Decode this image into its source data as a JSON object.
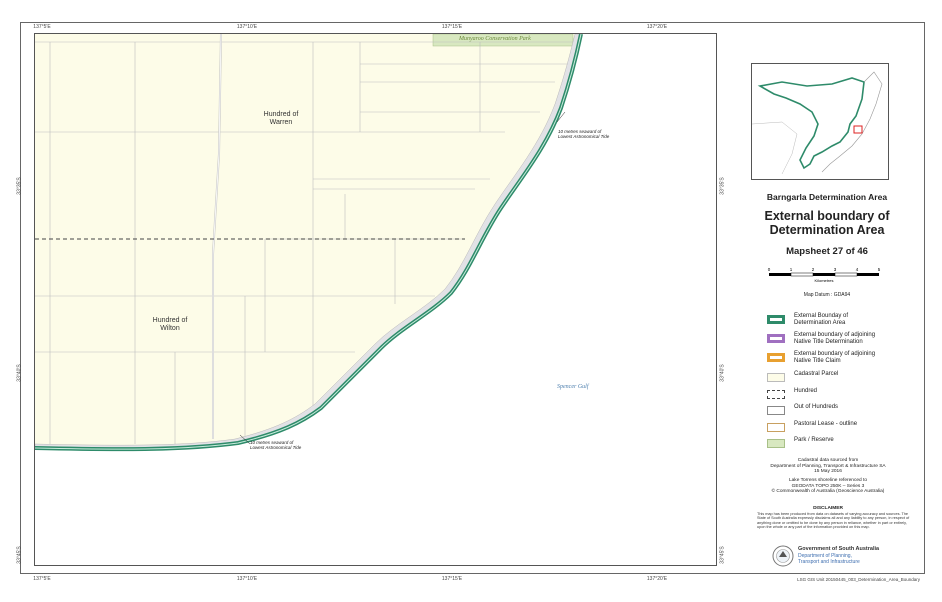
{
  "ticks": {
    "top": [
      "137°5'E",
      "137°10'E",
      "137°15'E",
      "137°20'E"
    ],
    "bottom": [
      "137°5'E",
      "137°10'E",
      "137°15'E",
      "137°20'E"
    ],
    "left": [
      "33°35'S",
      "33°40'S",
      "33°45'S"
    ],
    "right": [
      "33°35'S",
      "33°40'S",
      "33°45'S"
    ]
  },
  "map": {
    "park_label": "Munyaroo Conservation Park",
    "hundred_warren": "Hundred of\nWarren",
    "hundred_wilton": "Hundred of\nWilton",
    "sea_label": "Spencer Gulf",
    "annotation_top": "10 metres seaward of\nLowest Astronomical Tide",
    "annotation_bottom": "10 metres seaward of\nLowest Astronomical Tide"
  },
  "panel": {
    "area_title": "Barngarla Determination Area",
    "main_title": "External boundary of\nDetermination Area",
    "mapsheet": "Mapsheet 27 of 46",
    "scale_labels": [
      "0",
      "1",
      "2",
      "3",
      "4",
      "5"
    ],
    "scale_unit": "Kilometres",
    "datum": "Map Datum : GDA94"
  },
  "legend": [
    {
      "label": "External Bounday of\nDetermination Area",
      "color": "#2e8b6a"
    },
    {
      "label": "External boundary of adjoining\nNative Title Determination",
      "color": "#a070c0"
    },
    {
      "label": "External boundary of adjoining\nNative Title Claim",
      "color": "#e8a030"
    },
    {
      "label": "Cadastral Parcel",
      "color": "#fdfce8"
    },
    {
      "label": "Hundred",
      "color": "#444444"
    },
    {
      "label": "Out of Hundreds",
      "color": "#888888"
    },
    {
      "label": "Pastoral Lease - outline",
      "color": "#c8a060"
    },
    {
      "label": "Park / Reserve",
      "color": "#d8e8c0"
    }
  ],
  "sources": {
    "cadastral": "Cadastral data sourced from\nDepartment of Planning, Transport & Infrastructure SA\n15 May 2016",
    "shoreline": "Lake Torrens shoreline referenced to\nGEODATA TOPO 250K – Series 3\n© Commonwealth of Australia (Geoscience Australia)"
  },
  "disclaimer": {
    "heading": "DISCLAIMER",
    "text": "This map has been produced from data on datasets of varying accuracy and sources. The State of South Australia expressly disclaims all and any liability to any person, in respect of anything done or omitted to be done by any person in reliance, whether in part or entirely, upon the whole or any part of the information provided on this map."
  },
  "government": {
    "name": "Government of South Australia",
    "department": "Department of Planning,\nTransport and Infrastructure"
  },
  "footer": "LSG GIS Unit  20150445_003_Determination_Area_Boundary",
  "colors": {
    "land": "#fdfce8",
    "boundary": "#2e8b6a",
    "park": "#d8e8c0",
    "sea_label": "#4d7fae"
  }
}
